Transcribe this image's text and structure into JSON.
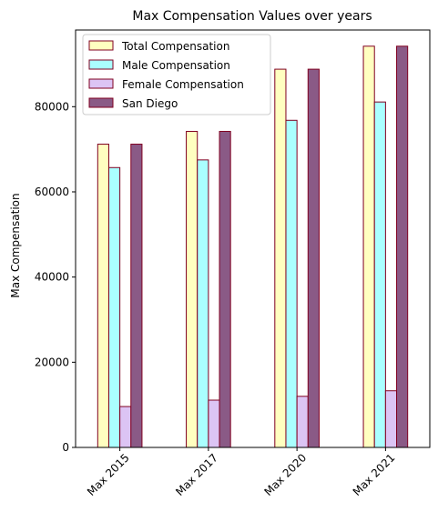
{
  "chart_data": {
    "type": "bar",
    "title": "Max Compensation Values over years",
    "xlabel": "",
    "ylabel": "Max Compensation",
    "categories": [
      "Max 2015",
      "Max 2017",
      "Max 2020",
      "Max 2021"
    ],
    "ylim": [
      0,
      98000
    ],
    "yticks": [
      0,
      20000,
      40000,
      60000,
      80000
    ],
    "grid": false,
    "legend_position": "upper-left",
    "edge_color": "#800020",
    "series": [
      {
        "name": "Total Compensation",
        "color": "#ffffc0",
        "values": [
          71200,
          74200,
          88800,
          94200
        ]
      },
      {
        "name": "Male Compensation",
        "color": "#aaffff",
        "values": [
          65700,
          67500,
          76800,
          81100
        ]
      },
      {
        "name": "Female Compensation",
        "color": "#dcc4f4",
        "values": [
          9600,
          11100,
          12000,
          13300
        ]
      },
      {
        "name": "San Diego",
        "color": "#8a5a86",
        "values": [
          71200,
          74200,
          88800,
          94200
        ]
      }
    ]
  }
}
